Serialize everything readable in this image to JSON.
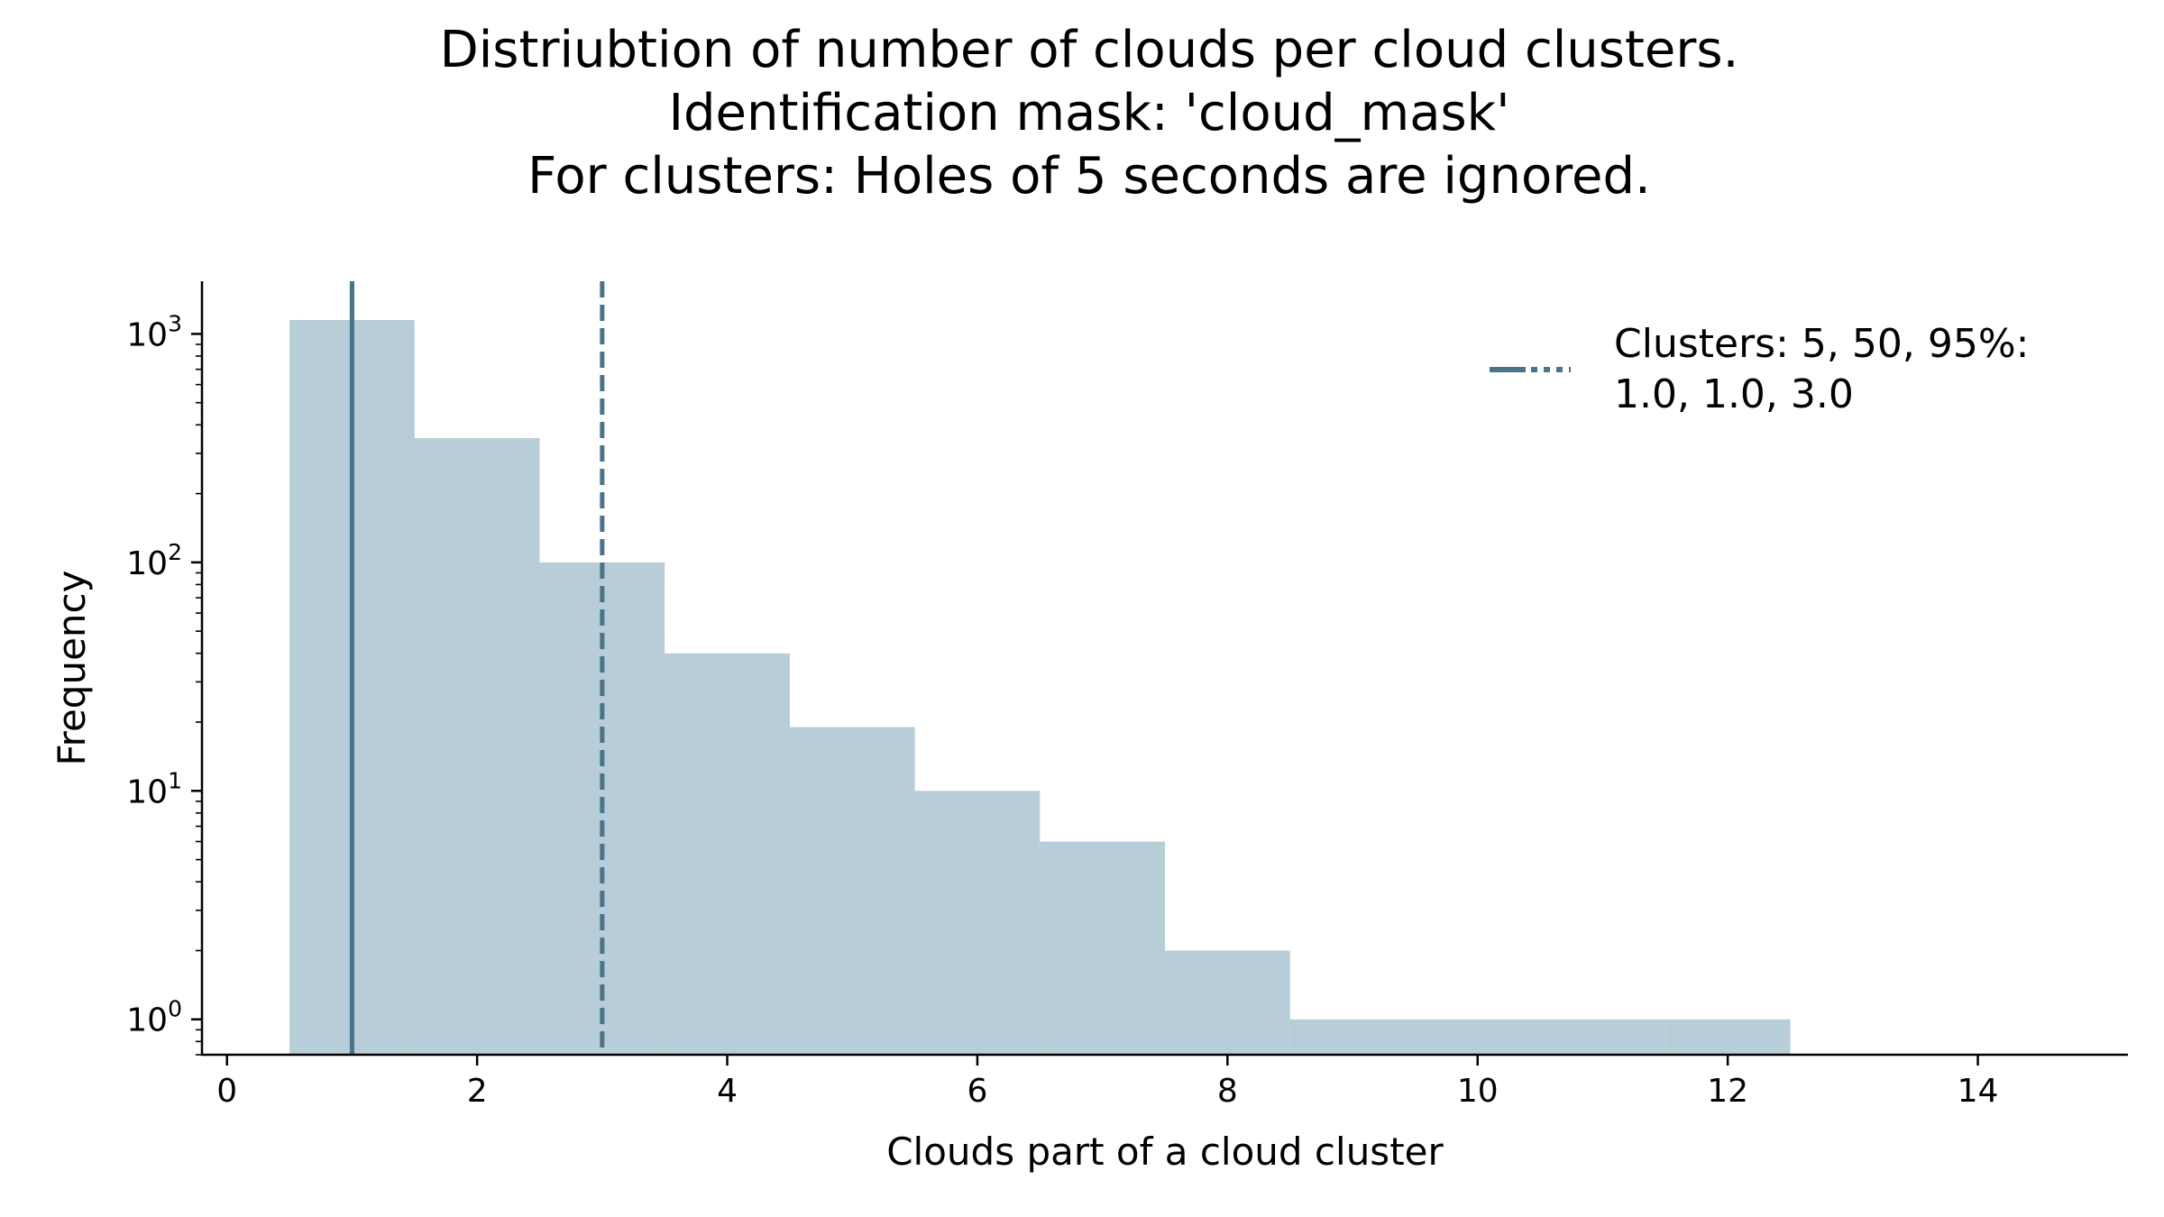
{
  "chart_data": {
    "type": "bar",
    "title": [
      "Distriubtion of number of clouds per cloud clusters.",
      "Identification mask: 'cloud_mask'",
      "For clusters: Holes of 5 seconds are ignored."
    ],
    "xlabel": "Clouds part of a cloud cluster",
    "ylabel": "Frequency",
    "xlim": [
      -0.2,
      15.2
    ],
    "ylim": [
      0.7,
      1700
    ],
    "yscale": "log",
    "x_ticks": [
      0,
      2,
      4,
      6,
      8,
      10,
      12,
      14
    ],
    "x_tick_labels": [
      "0",
      "2",
      "4",
      "6",
      "8",
      "10",
      "12",
      "14"
    ],
    "y_ticks": [
      {
        "value": 1,
        "base": "10",
        "exp": "0"
      },
      {
        "value": 10,
        "base": "10",
        "exp": "1"
      },
      {
        "value": 100,
        "base": "10",
        "exp": "2"
      },
      {
        "value": 1000,
        "base": "10",
        "exp": "3"
      }
    ],
    "bins": [
      {
        "x0": 0.5,
        "x1": 1.5,
        "value": 1150
      },
      {
        "x0": 1.5,
        "x1": 2.5,
        "value": 350
      },
      {
        "x0": 2.5,
        "x1": 3.5,
        "value": 100
      },
      {
        "x0": 3.5,
        "x1": 4.5,
        "value": 40
      },
      {
        "x0": 4.5,
        "x1": 5.5,
        "value": 19
      },
      {
        "x0": 5.5,
        "x1": 6.5,
        "value": 10
      },
      {
        "x0": 6.5,
        "x1": 7.5,
        "value": 6
      },
      {
        "x0": 7.5,
        "x1": 8.5,
        "value": 2
      },
      {
        "x0": 8.5,
        "x1": 9.5,
        "value": 1
      },
      {
        "x0": 9.5,
        "x1": 10.5,
        "value": 1
      },
      {
        "x0": 10.5,
        "x1": 11.5,
        "value": 1
      },
      {
        "x0": 11.5,
        "x1": 12.5,
        "value": 1
      }
    ],
    "percentile_lines": [
      {
        "percentile": 5,
        "x": 1.0,
        "style": "solid"
      },
      {
        "percentile": 50,
        "x": 1.0,
        "style": "solid"
      },
      {
        "percentile": 95,
        "x": 3.0,
        "style": "dashed"
      }
    ],
    "legend": {
      "placement": "top-right",
      "label_lines": [
        "Clusters: 5, 50, 95%:",
        "1.0,  1.0,  3.0"
      ]
    },
    "colors": {
      "bar": "#b7cdd7",
      "line": "#4a7489",
      "axis": "#000000"
    },
    "grid": false
  }
}
